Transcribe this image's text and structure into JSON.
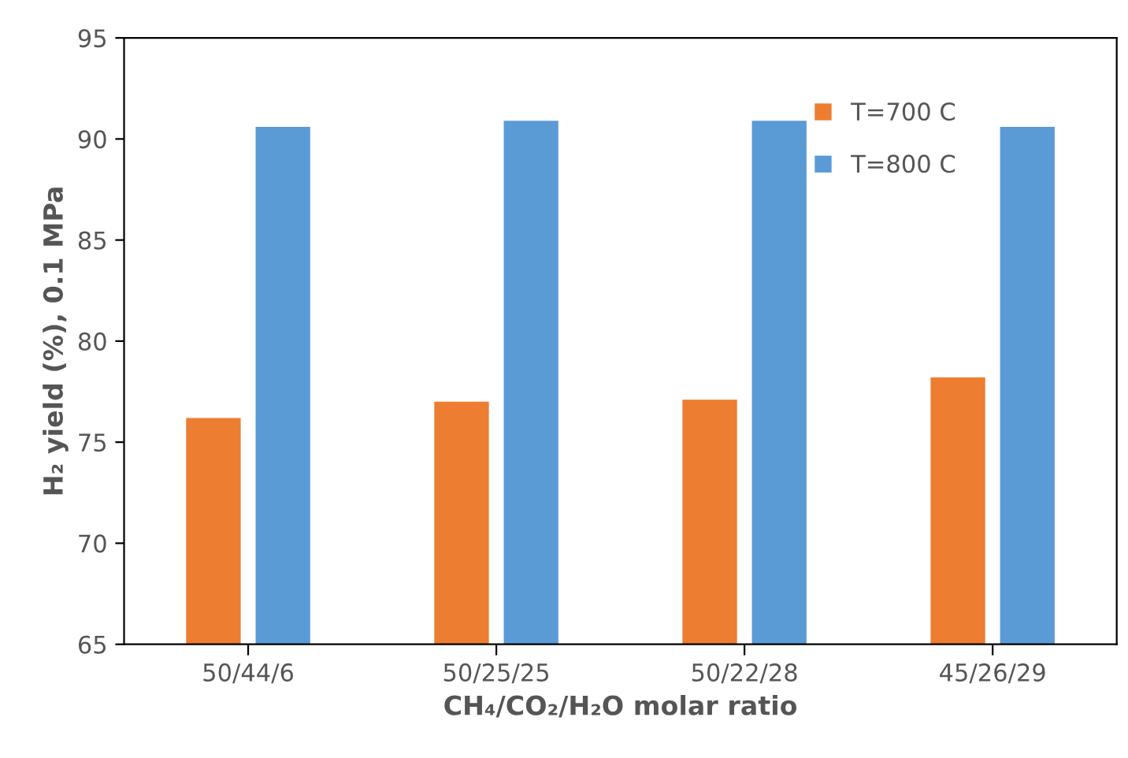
{
  "chart_data": {
    "type": "bar",
    "xlabel": "CH₄/CO₂/H₂O molar ratio",
    "ylabel": "H₂ yield (%), 0.1 MPa",
    "categories": [
      "50/44/6",
      "50/25/25",
      "50/22/28",
      "45/26/29"
    ],
    "series": [
      {
        "name": "T=700 C",
        "color": "#ed7d31",
        "values": [
          76.2,
          77.0,
          77.1,
          78.2
        ]
      },
      {
        "name": "T=800 C",
        "color": "#5b9bd5",
        "values": [
          90.6,
          90.9,
          90.9,
          90.6
        ]
      }
    ],
    "ylim": [
      65,
      95
    ],
    "yticks": [
      65,
      70,
      75,
      80,
      85,
      90,
      95
    ],
    "grid": false,
    "legend": "top right"
  }
}
